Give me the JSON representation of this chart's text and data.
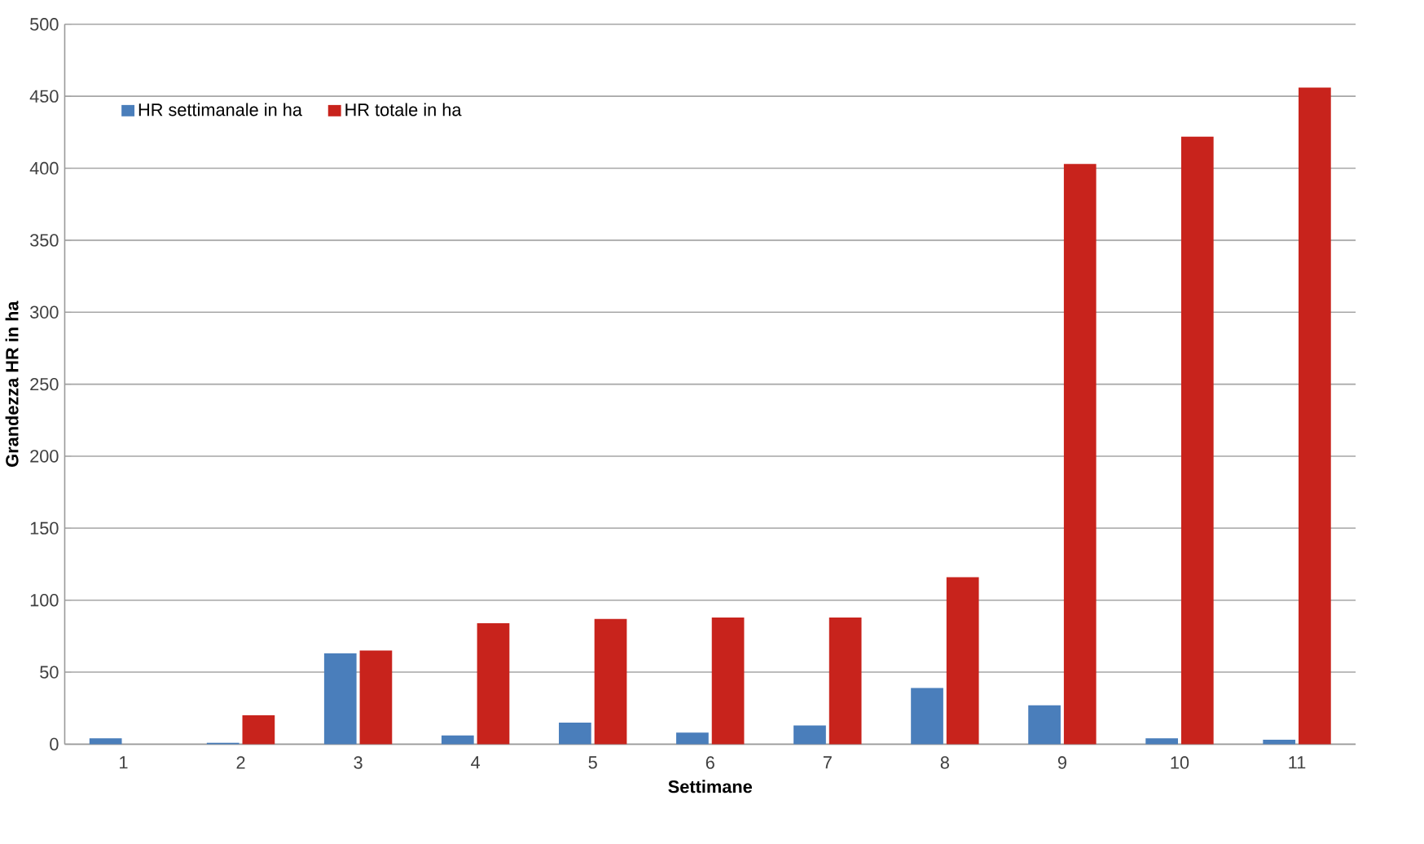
{
  "chart_data": {
    "type": "bar",
    "xlabel": "Settimane",
    "ylabel": "Grandezza HR in ha",
    "categories": [
      "1",
      "2",
      "3",
      "4",
      "5",
      "6",
      "7",
      "8",
      "9",
      "10",
      "11"
    ],
    "series": [
      {
        "name": "HR settimanale in ha",
        "color": "#4a7ebb",
        "values": [
          4,
          1,
          63,
          6,
          15,
          8,
          13,
          39,
          27,
          4,
          3
        ]
      },
      {
        "name": "HR totale in ha",
        "color": "#c8231c",
        "values": [
          0,
          20,
          65,
          84,
          87,
          88,
          88,
          116,
          403,
          422,
          456
        ]
      }
    ],
    "ylim": [
      0,
      500
    ],
    "yticks": [
      0,
      50,
      100,
      150,
      200,
      250,
      300,
      350,
      400,
      450,
      500
    ],
    "grid": "y",
    "legend": "top left"
  }
}
